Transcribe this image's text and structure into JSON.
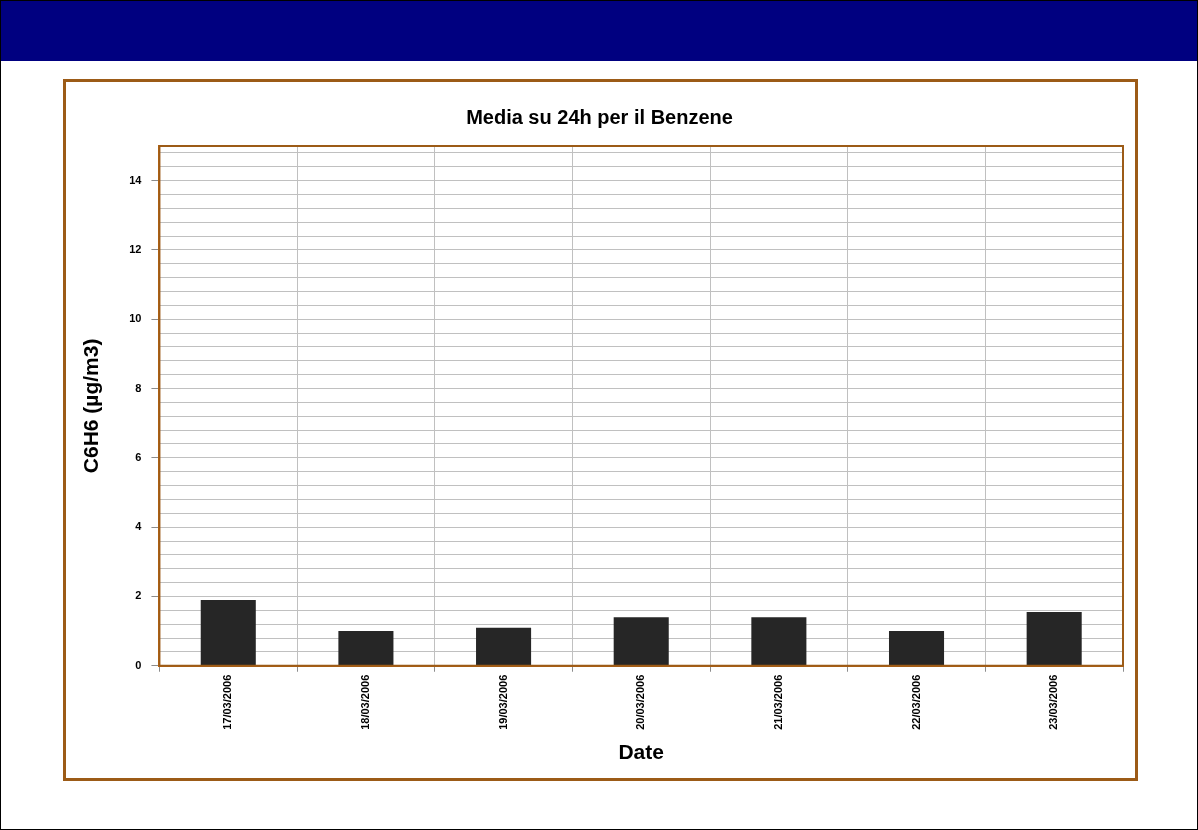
{
  "chart_data": {
    "type": "bar",
    "title": "Media su 24h per il Benzene",
    "xlabel": "Date",
    "ylabel": "C6H6 (µg/m3)",
    "categories": [
      "17/03/2006",
      "18/03/2006",
      "19/03/2006",
      "20/03/2006",
      "21/03/2006",
      "22/03/2006",
      "23/03/2006"
    ],
    "values": [
      1.9,
      1.0,
      1.1,
      1.4,
      1.4,
      1.0,
      1.55
    ],
    "color": "#262626",
    "ylim": [
      0,
      15
    ],
    "yticks": [
      0,
      {
        "value": 0.4,
        "label": null
      },
      {
        "value": 0.8,
        "label": null
      },
      {
        "value": 1.2,
        "label": null
      },
      {
        "value": 1.6,
        "label": null
      },
      2,
      {
        "value": 2.4,
        "label": null
      },
      {
        "value": 2.8,
        "label": null
      },
      {
        "value": 3.2,
        "label": null
      },
      {
        "value": 3.6,
        "label": null
      },
      4,
      {
        "value": 4.4,
        "label": null
      },
      {
        "value": 4.8,
        "label": null
      },
      {
        "value": 5.2,
        "label": null
      },
      {
        "value": 5.6,
        "label": null
      },
      6,
      {
        "value": 6.4,
        "label": null
      },
      {
        "value": 6.8,
        "label": null
      },
      {
        "value": 7.2,
        "label": null
      },
      {
        "value": 7.6,
        "label": null
      },
      8,
      {
        "value": 8.4,
        "label": null
      },
      {
        "value": 8.8,
        "label": null
      },
      {
        "value": 9.2,
        "label": null
      },
      {
        "value": 9.6,
        "label": null
      },
      10,
      {
        "value": 10.4,
        "label": null
      },
      {
        "value": 10.8,
        "label": null
      },
      {
        "value": 11.2,
        "label": null
      },
      {
        "value": 11.6,
        "label": null
      },
      12,
      {
        "value": 12.4,
        "label": null
      },
      {
        "value": 12.8,
        "label": null
      },
      {
        "value": 13.2,
        "label": null
      },
      {
        "value": 13.6,
        "label": null
      },
      14,
      {
        "value": 14.4,
        "label": null
      },
      {
        "value": 14.8,
        "label": null
      }
    ],
    "grid": true,
    "legend": false
  }
}
